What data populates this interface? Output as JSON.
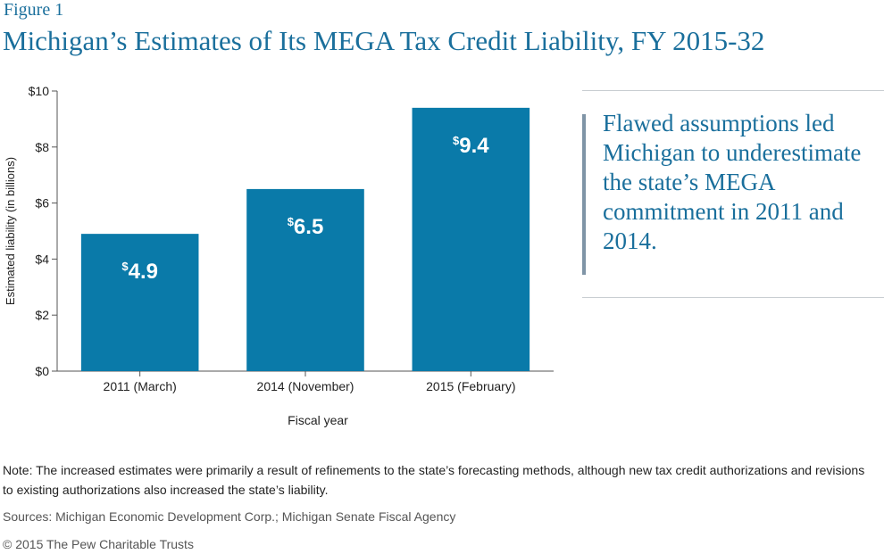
{
  "figure_label": "Figure 1",
  "title": "Michigan’s Estimates of Its MEGA Tax Credit Liability, FY 2015-32",
  "chart_data": {
    "type": "bar",
    "categories": [
      "2011 (March)",
      "2014 (November)",
      "2015 (February)"
    ],
    "values": [
      4.9,
      6.5,
      9.4
    ],
    "data_labels": [
      {
        "prefix": "$",
        "value": "4.9"
      },
      {
        "prefix": "$",
        "value": "6.5"
      },
      {
        "prefix": "$",
        "value": "9.4"
      }
    ],
    "xlabel": "Fiscal year",
    "ylabel": "Estimated liability (in billions)",
    "ylim": [
      0,
      10
    ],
    "yticks": [
      0,
      2,
      4,
      6,
      8,
      10
    ],
    "ytick_labels": [
      "$0",
      "$2",
      "$4",
      "$6",
      "$8",
      "$10"
    ],
    "grid": false,
    "bar_color": "#0a7aa9"
  },
  "callout": {
    "text": "Flawed assumptions led Michigan to underestimate the state’s MEGA commitment in 2011 and 2014."
  },
  "note": "Note: The increased estimates were primarily a result of refinements to the state’s forecasting methods, although new tax credit authorizations and revisions to existing authorizations also increased the state’s liability.",
  "sources": "Sources: Michigan Economic Development Corp.; Michigan Senate Fiscal Agency",
  "copyright": "© 2015 The Pew Charitable Trusts"
}
